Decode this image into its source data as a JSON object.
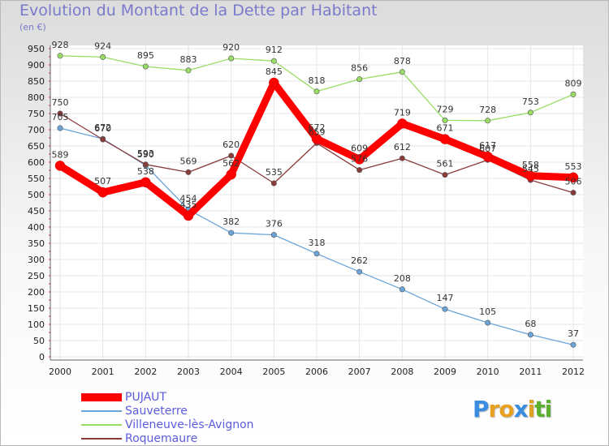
{
  "title": "Evolution du Montant de la Dette par Habitant",
  "subtitle": "(en €)",
  "logo": {
    "text": "Proxiti",
    "letters": [
      "P",
      "r",
      "o",
      "x",
      "i",
      "t",
      "i"
    ],
    "colors": [
      "#3a8de0",
      "#e8a020",
      "#e8a020",
      "#3a8de0",
      "#e0a020",
      "#5cb030",
      "#5cb030"
    ]
  },
  "chart_data": {
    "type": "line",
    "x": [
      "2000",
      "2001",
      "2002",
      "2003",
      "2004",
      "2005",
      "2006",
      "2007",
      "2008",
      "2009",
      "2010",
      "2011",
      "2012"
    ],
    "ylim": [
      0,
      950
    ],
    "yticks": [
      0,
      50,
      100,
      150,
      200,
      250,
      300,
      350,
      400,
      450,
      500,
      550,
      600,
      650,
      700,
      750,
      800,
      850,
      900,
      950
    ],
    "grid": true,
    "legend_placement": "bottom-left",
    "series": [
      {
        "name": "PUJAUT",
        "color": "#ff0000",
        "values": [
          589,
          507,
          538,
          435,
          562,
          845,
          672,
          609,
          719,
          671,
          617,
          558,
          553
        ]
      },
      {
        "name": "Sauveterre",
        "color": "#6aa4d8",
        "values": [
          705,
          672,
          590,
          454,
          382,
          376,
          318,
          262,
          208,
          147,
          105,
          68,
          37
        ]
      },
      {
        "name": "Villeneuve-lès-Avignon",
        "color": "#99dd66",
        "values": [
          928,
          924,
          895,
          883,
          920,
          912,
          818,
          856,
          878,
          729,
          728,
          753,
          809
        ]
      },
      {
        "name": "Roquemaure",
        "color": "#8b3a3a",
        "values": [
          750,
          670,
          593,
          569,
          620,
          535,
          659,
          576,
          612,
          561,
          607,
          545,
          506
        ]
      }
    ]
  }
}
